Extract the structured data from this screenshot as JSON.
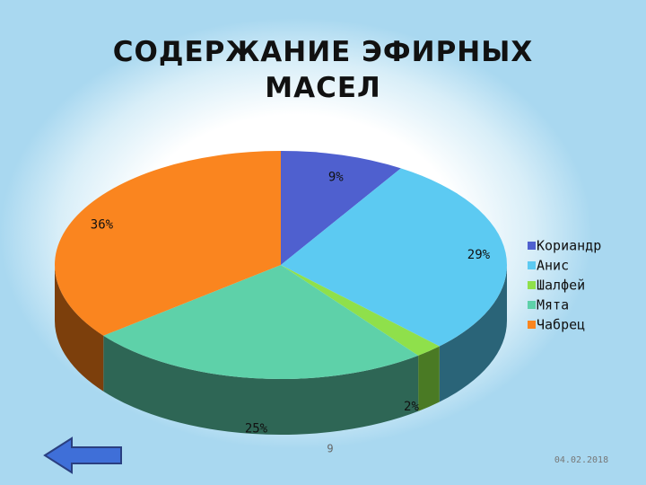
{
  "chart_data": {
    "type": "pie3d",
    "title": "СОДЕРЖАНИЕ ЭФИРНЫХ МАСЕЛ",
    "categories": [
      "Кориандр",
      "Анис",
      "Шалфей",
      "Мята",
      "Чабрец"
    ],
    "values": [
      9,
      29,
      2,
      25,
      36
    ],
    "value_labels": [
      "9%",
      "29%",
      "2%",
      "25%",
      "36%"
    ],
    "colors": [
      "#4f60cf",
      "#5ccaf2",
      "#8fe04b",
      "#5ed1a9",
      "#fa851f"
    ],
    "side_colors": [
      "#2f3a7c",
      "#2a6478",
      "#4a7a24",
      "#2e6655",
      "#7c3f0c"
    ],
    "legend": "right"
  },
  "slide": {
    "page_number": "9",
    "date": "04.02.2018"
  }
}
